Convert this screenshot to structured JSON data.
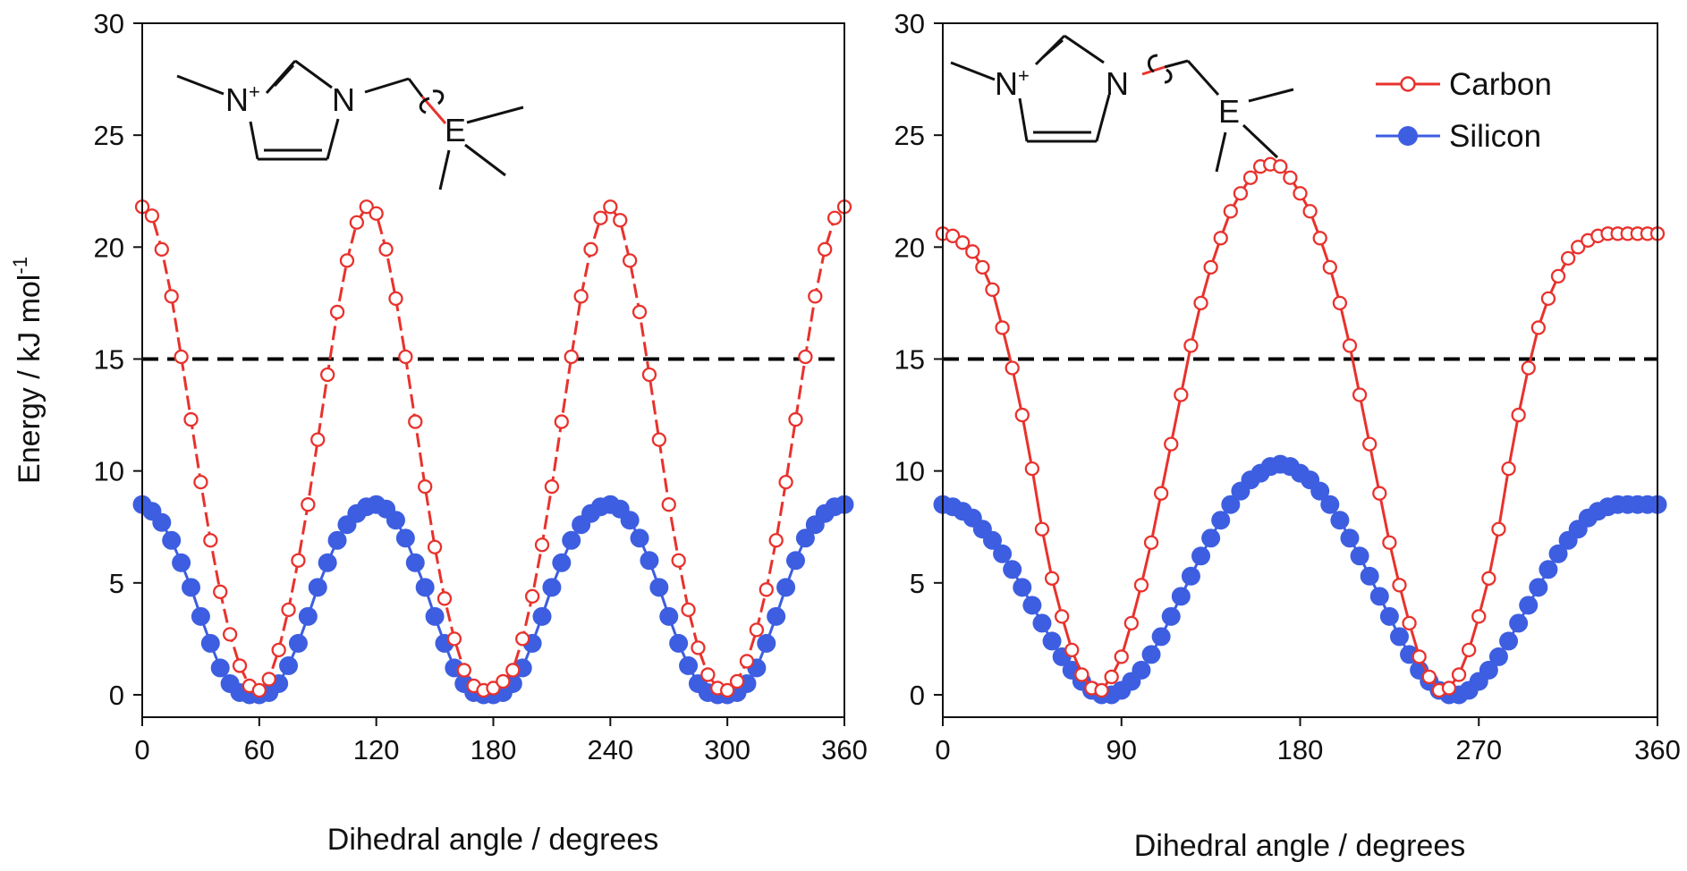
{
  "chart_data": [
    {
      "type": "line",
      "xlabel": "Dihedral angle / degrees",
      "ylabel": "Energy / kJ mol-1",
      "ylabel_main": "Energy / kJ mol",
      "ylabel_sup": "-1",
      "xlim": [
        0,
        360
      ],
      "ylim": [
        -1,
        30
      ],
      "xticks": [
        0,
        60,
        120,
        180,
        240,
        300,
        360
      ],
      "yticks": [
        0,
        5,
        10,
        15,
        20,
        25,
        30
      ],
      "reference_line": {
        "y": 15,
        "style": "dashed",
        "color": "#000000"
      },
      "molecule": {
        "n_left": "N",
        "plus": "+",
        "n_right": "N",
        "e_atom": "E"
      },
      "series": [
        {
          "name": "Carbon",
          "marker": "open-circle",
          "color": "#e8322d",
          "x": [
            0,
            5,
            10,
            15,
            20,
            25,
            30,
            35,
            40,
            45,
            50,
            55,
            60,
            65,
            70,
            75,
            80,
            85,
            90,
            95,
            100,
            105,
            110,
            115,
            120,
            125,
            130,
            135,
            140,
            145,
            150,
            155,
            160,
            165,
            170,
            175,
            180,
            185,
            190,
            195,
            200,
            205,
            210,
            215,
            220,
            225,
            230,
            235,
            240,
            245,
            250,
            255,
            260,
            265,
            270,
            275,
            280,
            285,
            290,
            295,
            300,
            305,
            310,
            315,
            320,
            325,
            330,
            335,
            340,
            345,
            350,
            355,
            360
          ],
          "y": [
            21.8,
            21.4,
            19.9,
            17.8,
            15.1,
            12.3,
            9.5,
            6.9,
            4.6,
            2.7,
            1.3,
            0.4,
            0.2,
            0.7,
            2.0,
            3.8,
            6.0,
            8.5,
            11.4,
            14.3,
            17.1,
            19.4,
            21.1,
            21.8,
            21.5,
            19.9,
            17.7,
            15.1,
            12.2,
            9.3,
            6.6,
            4.3,
            2.5,
            1.1,
            0.4,
            0.2,
            0.3,
            0.6,
            1.1,
            2.5,
            4.4,
            6.7,
            9.3,
            12.2,
            15.1,
            17.8,
            19.9,
            21.3,
            21.8,
            21.2,
            19.4,
            17.1,
            14.3,
            11.4,
            8.5,
            6.0,
            3.8,
            2.1,
            0.9,
            0.3,
            0.2,
            0.6,
            1.5,
            2.9,
            4.7,
            6.9,
            9.5,
            12.3,
            15.1,
            17.8,
            19.9,
            21.3,
            21.8
          ]
        },
        {
          "name": "Silicon",
          "marker": "filled-circle",
          "color": "#3d5ee0",
          "x": [
            0,
            5,
            10,
            15,
            20,
            25,
            30,
            35,
            40,
            45,
            50,
            55,
            60,
            65,
            70,
            75,
            80,
            85,
            90,
            95,
            100,
            105,
            110,
            115,
            120,
            125,
            130,
            135,
            140,
            145,
            150,
            155,
            160,
            165,
            170,
            175,
            180,
            185,
            190,
            195,
            200,
            205,
            210,
            215,
            220,
            225,
            230,
            235,
            240,
            245,
            250,
            255,
            260,
            265,
            270,
            275,
            280,
            285,
            290,
            295,
            300,
            305,
            310,
            315,
            320,
            325,
            330,
            335,
            340,
            345,
            350,
            355,
            360
          ],
          "y": [
            8.5,
            8.2,
            7.7,
            6.9,
            5.9,
            4.8,
            3.5,
            2.3,
            1.2,
            0.5,
            0.1,
            0.0,
            0.0,
            0.1,
            0.5,
            1.3,
            2.3,
            3.5,
            4.8,
            5.9,
            6.9,
            7.6,
            8.1,
            8.4,
            8.5,
            8.3,
            7.8,
            7.0,
            5.9,
            4.8,
            3.5,
            2.3,
            1.2,
            0.5,
            0.1,
            0.0,
            0.0,
            0.1,
            0.5,
            1.2,
            2.3,
            3.5,
            4.8,
            5.9,
            6.9,
            7.6,
            8.1,
            8.4,
            8.5,
            8.3,
            7.8,
            7.0,
            6.0,
            4.8,
            3.5,
            2.3,
            1.3,
            0.5,
            0.1,
            0.0,
            0.0,
            0.1,
            0.5,
            1.2,
            2.3,
            3.5,
            4.8,
            6.0,
            7.0,
            7.6,
            8.1,
            8.4,
            8.5
          ]
        }
      ]
    },
    {
      "type": "line",
      "xlabel": "Dihedral angle / degrees",
      "xlim": [
        0,
        360
      ],
      "ylim": [
        -1,
        30
      ],
      "xticks": [
        0,
        90,
        180,
        270,
        360
      ],
      "yticks": [
        0,
        5,
        10,
        15,
        20,
        25,
        30
      ],
      "reference_line": {
        "y": 15,
        "style": "dashed",
        "color": "#000000"
      },
      "legend": {
        "position": "top-right",
        "entries": [
          "Carbon",
          "Silicon"
        ]
      },
      "molecule": {
        "n_left": "N",
        "plus": "+",
        "n_right": "N",
        "e_atom": "E"
      },
      "series": [
        {
          "name": "Carbon",
          "marker": "open-circle",
          "color": "#e8322d",
          "x": [
            0,
            5,
            10,
            15,
            20,
            25,
            30,
            35,
            40,
            45,
            50,
            55,
            60,
            65,
            70,
            75,
            80,
            85,
            90,
            95,
            100,
            105,
            110,
            115,
            120,
            125,
            130,
            135,
            140,
            145,
            150,
            155,
            160,
            165,
            170,
            175,
            180,
            185,
            190,
            195,
            200,
            205,
            210,
            215,
            220,
            225,
            230,
            235,
            240,
            245,
            250,
            255,
            260,
            265,
            270,
            275,
            280,
            285,
            290,
            295,
            300,
            305,
            310,
            315,
            320,
            325,
            330,
            335,
            340,
            345,
            350,
            355,
            360
          ],
          "y": [
            20.6,
            20.5,
            20.2,
            19.8,
            19.1,
            18.1,
            16.4,
            14.6,
            12.5,
            10.1,
            7.4,
            5.2,
            3.5,
            2.0,
            0.9,
            0.3,
            0.2,
            0.8,
            1.7,
            3.2,
            4.9,
            6.8,
            9.0,
            11.2,
            13.4,
            15.6,
            17.5,
            19.1,
            20.4,
            21.6,
            22.4,
            23.1,
            23.6,
            23.7,
            23.6,
            23.1,
            22.4,
            21.6,
            20.4,
            19.1,
            17.5,
            15.6,
            13.4,
            11.2,
            9.0,
            6.8,
            4.9,
            3.2,
            1.7,
            0.8,
            0.2,
            0.3,
            0.9,
            2.0,
            3.5,
            5.2,
            7.4,
            10.1,
            12.5,
            14.6,
            16.4,
            17.7,
            18.7,
            19.5,
            20.0,
            20.3,
            20.5,
            20.6,
            20.6,
            20.6,
            20.6,
            20.6,
            20.6
          ]
        },
        {
          "name": "Silicon",
          "marker": "filled-circle",
          "color": "#3d5ee0",
          "x": [
            0,
            5,
            10,
            15,
            20,
            25,
            30,
            35,
            40,
            45,
            50,
            55,
            60,
            65,
            70,
            75,
            80,
            85,
            90,
            95,
            100,
            105,
            110,
            115,
            120,
            125,
            130,
            135,
            140,
            145,
            150,
            155,
            160,
            165,
            170,
            175,
            180,
            185,
            190,
            195,
            200,
            205,
            210,
            215,
            220,
            225,
            230,
            235,
            240,
            245,
            250,
            255,
            260,
            265,
            270,
            275,
            280,
            285,
            290,
            295,
            300,
            305,
            310,
            315,
            320,
            325,
            330,
            335,
            340,
            345,
            350,
            355,
            360
          ],
          "y": [
            8.5,
            8.4,
            8.2,
            7.9,
            7.4,
            6.9,
            6.3,
            5.6,
            4.8,
            4.0,
            3.2,
            2.4,
            1.7,
            1.1,
            0.6,
            0.2,
            0.0,
            0.0,
            0.2,
            0.6,
            1.1,
            1.8,
            2.6,
            3.5,
            4.4,
            5.3,
            6.2,
            7.0,
            7.8,
            8.5,
            9.1,
            9.6,
            9.9,
            10.2,
            10.3,
            10.2,
            9.9,
            9.6,
            9.1,
            8.5,
            7.8,
            7.0,
            6.2,
            5.3,
            4.4,
            3.5,
            2.6,
            1.8,
            1.1,
            0.6,
            0.2,
            0.0,
            0.0,
            0.2,
            0.6,
            1.1,
            1.7,
            2.4,
            3.2,
            4.0,
            4.8,
            5.6,
            6.3,
            6.9,
            7.4,
            7.9,
            8.2,
            8.4,
            8.5,
            8.5,
            8.5,
            8.5,
            8.5
          ]
        }
      ]
    }
  ]
}
